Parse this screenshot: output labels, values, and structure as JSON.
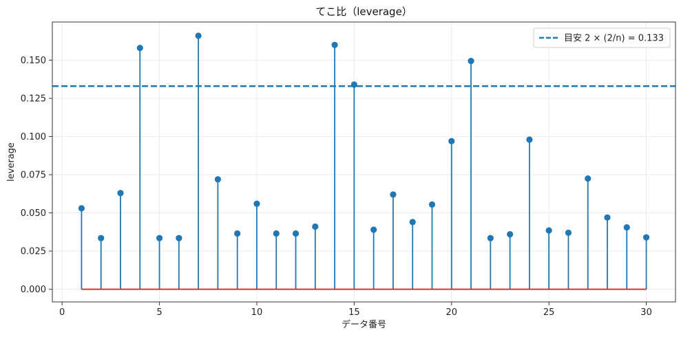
{
  "chart_data": {
    "type": "stem",
    "title": "てこ比（leverage）",
    "xlabel": "データ番号",
    "ylabel": "leverage",
    "xlim": [
      -0.5,
      31.5
    ],
    "ylim": [
      -0.0083,
      0.175
    ],
    "xticks": [
      0,
      5,
      10,
      15,
      20,
      25,
      30
    ],
    "xtick_labels": [
      "0",
      "5",
      "10",
      "15",
      "20",
      "25",
      "30"
    ],
    "yticks": [
      0.0,
      0.025,
      0.05,
      0.075,
      0.1,
      0.125,
      0.15
    ],
    "ytick_labels": [
      "0.000",
      "0.025",
      "0.050",
      "0.075",
      "0.100",
      "0.125",
      "0.150"
    ],
    "grid": true,
    "x": [
      1,
      2,
      3,
      4,
      5,
      6,
      7,
      8,
      9,
      10,
      11,
      12,
      13,
      14,
      15,
      16,
      17,
      18,
      19,
      20,
      21,
      22,
      23,
      24,
      25,
      26,
      27,
      28,
      29,
      30
    ],
    "values": [
      0.053,
      0.0335,
      0.063,
      0.158,
      0.0335,
      0.0335,
      0.166,
      0.072,
      0.0365,
      0.056,
      0.0365,
      0.0365,
      0.041,
      0.16,
      0.134,
      0.039,
      0.062,
      0.044,
      0.0555,
      0.097,
      0.1495,
      0.0335,
      0.036,
      0.098,
      0.0385,
      0.037,
      0.0725,
      0.047,
      0.0405,
      0.034
    ],
    "baseline": 0,
    "threshold": {
      "value": 0.133,
      "label": "目安 2 × (2/n) = 0.133"
    },
    "legend_position": "top-right",
    "colors": {
      "stem": "#1f77b4",
      "marker": "#1f77b4",
      "baseline": "#d62728",
      "threshold": "#1f77b4",
      "grid": "#e6e6e6",
      "axis": "#333333"
    }
  }
}
